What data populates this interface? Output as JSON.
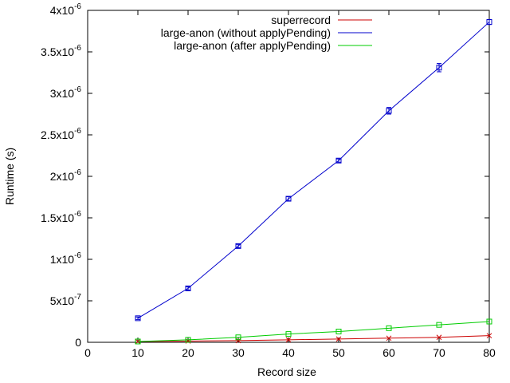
{
  "chart_data": {
    "type": "line",
    "title": "",
    "xlabel": "Record size",
    "ylabel": "Runtime (s)",
    "xlim": [
      0,
      80
    ],
    "ylim": [
      0,
      4e-06
    ],
    "x_ticks": [
      0,
      10,
      20,
      30,
      40,
      50,
      60,
      70,
      80
    ],
    "x_tick_labels": [
      "0",
      "10",
      "20",
      "30",
      "40",
      "50",
      "60",
      "70",
      "80"
    ],
    "y_ticks": [
      0,
      5e-07,
      1e-06,
      1.5e-06,
      2e-06,
      2.5e-06,
      3e-06,
      3.5e-06,
      4e-06
    ],
    "y_tick_labels": [
      {
        "base": "0",
        "exp": ""
      },
      {
        "base": "5x10",
        "exp": "-7"
      },
      {
        "base": "1x10",
        "exp": "-6"
      },
      {
        "base": "1.5x10",
        "exp": "-6"
      },
      {
        "base": "2x10",
        "exp": "-6"
      },
      {
        "base": "2.5x10",
        "exp": "-6"
      },
      {
        "base": "3x10",
        "exp": "-6"
      },
      {
        "base": "3.5x10",
        "exp": "-6"
      },
      {
        "base": "4x10",
        "exp": "-6"
      }
    ],
    "grid": false,
    "legend_position": "top-right",
    "x": [
      10,
      20,
      30,
      40,
      50,
      60,
      70,
      80
    ],
    "series": [
      {
        "name": "superrecord",
        "color": "#cc0000",
        "marker": "x",
        "values": [
          1e-08,
          1.5e-08,
          2e-08,
          3e-08,
          4e-08,
          5e-08,
          6e-08,
          8e-08
        ]
      },
      {
        "name": "large-anon (without applyPending)",
        "color": "#0000cc",
        "marker": "square",
        "values": [
          2.9e-07,
          6.5e-07,
          1.16e-06,
          1.73e-06,
          2.19e-06,
          2.79e-06,
          3.31e-06,
          3.86e-06
        ],
        "error": [
          1.5e-08,
          2e-08,
          2e-08,
          2.5e-08,
          2e-08,
          4e-08,
          5e-08,
          3e-08
        ]
      },
      {
        "name": "large-anon (after applyPending)",
        "color": "#00cc00",
        "marker": "square",
        "values": [
          1e-08,
          3e-08,
          6e-08,
          1e-07,
          1.3e-07,
          1.7e-07,
          2.1e-07,
          2.5e-07
        ]
      }
    ]
  }
}
